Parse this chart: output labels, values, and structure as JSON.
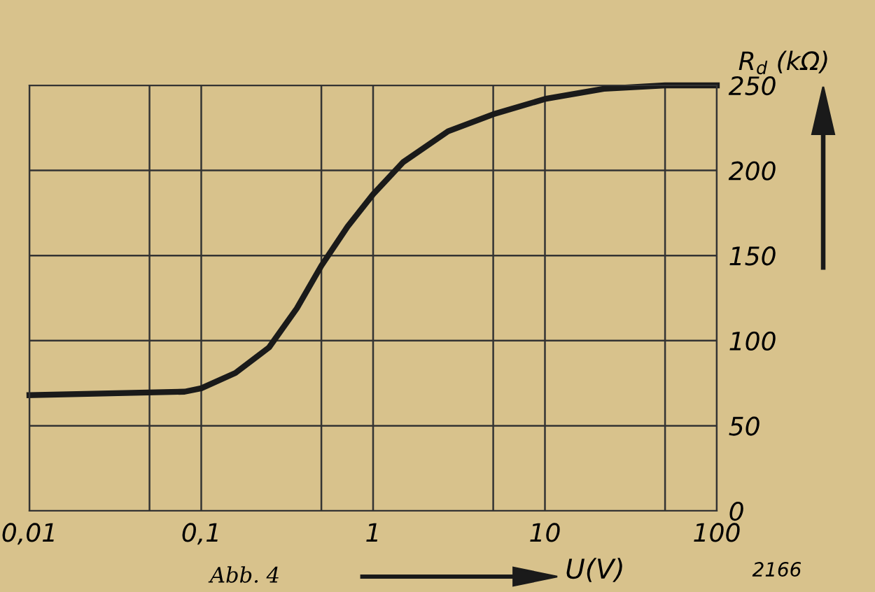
{
  "chart_data": {
    "type": "line",
    "xlabel": "U(V)",
    "ylabel": "R$_{d}$ (kΩ)",
    "x": [
      0.01,
      0.08,
      0.1,
      0.158,
      0.248,
      0.36,
      0.5,
      0.71,
      1,
      1.5,
      2.73,
      5,
      10,
      22,
      50,
      100
    ],
    "series": [
      {
        "color": "#1a1a1a",
        "values": [
          68,
          70,
          72,
          81,
          96,
          119,
          144,
          167,
          186,
          205,
          223,
          233,
          242,
          248,
          250,
          250
        ]
      }
    ],
    "log": "x",
    "xlim": [
      0.01,
      100
    ],
    "ylim": [
      0,
      250
    ],
    "xticks": [
      {
        "value": 0.01,
        "label": "0,01"
      },
      {
        "value": 0.05,
        "label": null
      },
      {
        "value": 0.1,
        "label": "0,1"
      },
      {
        "value": 0.5,
        "label": null
      },
      1,
      {
        "value": 5,
        "label": null
      },
      10,
      {
        "value": 50,
        "label": null
      },
      100
    ],
    "yticks": [
      0,
      50,
      100,
      150,
      200,
      250
    ],
    "grid": true,
    "marker": "none",
    "line_style": "solid",
    "annotations": [
      "Abb. 4",
      "2166"
    ]
  }
}
